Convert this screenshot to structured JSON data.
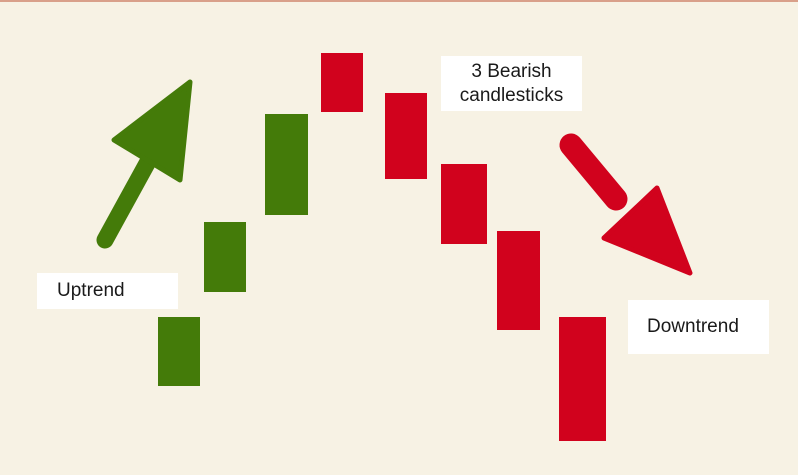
{
  "colors": {
    "background": "#f7f2e4",
    "top_rule": "#d9a08a",
    "bullish": "#447b09",
    "bearish": "#d1021d",
    "label_bg": "#ffffff"
  },
  "icons": {
    "uptrend_arrow": "arrow-up-right-icon",
    "downtrend_arrow": "arrow-down-right-icon"
  },
  "labels": {
    "uptrend": "Uptrend",
    "downtrend": "Downtrend",
    "bearish_line1": "3 Bearish",
    "bearish_line2": "candlesticks"
  },
  "candles": [
    {
      "direction": "bullish"
    },
    {
      "direction": "bullish"
    },
    {
      "direction": "bullish"
    },
    {
      "direction": "bearish"
    },
    {
      "direction": "bearish"
    },
    {
      "direction": "bearish"
    },
    {
      "direction": "bearish"
    },
    {
      "direction": "bearish"
    }
  ]
}
